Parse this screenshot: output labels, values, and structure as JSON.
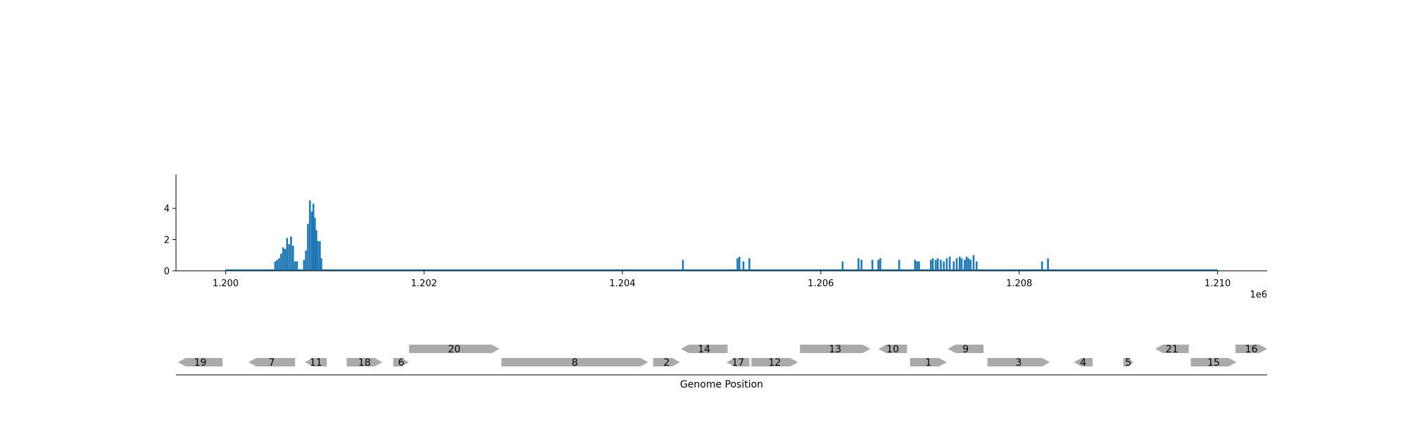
{
  "chart_data": [
    {
      "type": "bar",
      "panel": "coverage",
      "color": "#1f77b4",
      "x_ticks": [
        "1.200",
        "1.202",
        "1.204",
        "1.206",
        "1.208",
        "1.210"
      ],
      "x_tick_values": [
        1200000,
        1202000,
        1204000,
        1206000,
        1208000,
        1210000
      ],
      "x_offset_label": "1e6",
      "y_ticks": [
        "0",
        "2",
        "4"
      ],
      "y_tick_values": [
        0,
        2,
        4
      ],
      "xlim": [
        1199500,
        1210500
      ],
      "ylim": [
        0,
        5
      ],
      "baseline_range": [
        1200000,
        1210000
      ],
      "bars": [
        {
          "x": 1200500,
          "y": 0.6
        },
        {
          "x": 1200520,
          "y": 0.7
        },
        {
          "x": 1200540,
          "y": 0.8
        },
        {
          "x": 1200560,
          "y": 1.1
        },
        {
          "x": 1200580,
          "y": 1.5
        },
        {
          "x": 1200600,
          "y": 1.4
        },
        {
          "x": 1200620,
          "y": 2.1
        },
        {
          "x": 1200640,
          "y": 1.7
        },
        {
          "x": 1200660,
          "y": 2.2
        },
        {
          "x": 1200680,
          "y": 1.6
        },
        {
          "x": 1200700,
          "y": 0.6
        },
        {
          "x": 1200720,
          "y": 0.6
        },
        {
          "x": 1200790,
          "y": 0.7
        },
        {
          "x": 1200810,
          "y": 1.3
        },
        {
          "x": 1200830,
          "y": 3.0
        },
        {
          "x": 1200850,
          "y": 4.5
        },
        {
          "x": 1200870,
          "y": 3.8
        },
        {
          "x": 1200885,
          "y": 4.3
        },
        {
          "x": 1200900,
          "y": 3.4
        },
        {
          "x": 1200915,
          "y": 2.6
        },
        {
          "x": 1200930,
          "y": 1.9
        },
        {
          "x": 1200950,
          "y": 1.9
        },
        {
          "x": 1200965,
          "y": 0.8
        },
        {
          "x": 1204610,
          "y": 0.7
        },
        {
          "x": 1205160,
          "y": 0.8
        },
        {
          "x": 1205180,
          "y": 0.9
        },
        {
          "x": 1205220,
          "y": 0.6
        },
        {
          "x": 1205280,
          "y": 0.8
        },
        {
          "x": 1206220,
          "y": 0.6
        },
        {
          "x": 1206380,
          "y": 0.8
        },
        {
          "x": 1206410,
          "y": 0.7
        },
        {
          "x": 1206520,
          "y": 0.7
        },
        {
          "x": 1206580,
          "y": 0.7
        },
        {
          "x": 1206600,
          "y": 0.8
        },
        {
          "x": 1206790,
          "y": 0.7
        },
        {
          "x": 1206950,
          "y": 0.7
        },
        {
          "x": 1206970,
          "y": 0.6
        },
        {
          "x": 1206990,
          "y": 0.6
        },
        {
          "x": 1207110,
          "y": 0.7
        },
        {
          "x": 1207130,
          "y": 0.8
        },
        {
          "x": 1207160,
          "y": 0.7
        },
        {
          "x": 1207180,
          "y": 0.8
        },
        {
          "x": 1207210,
          "y": 0.7
        },
        {
          "x": 1207240,
          "y": 0.6
        },
        {
          "x": 1207270,
          "y": 0.8
        },
        {
          "x": 1207300,
          "y": 0.9
        },
        {
          "x": 1207340,
          "y": 0.6
        },
        {
          "x": 1207370,
          "y": 0.8
        },
        {
          "x": 1207400,
          "y": 0.9
        },
        {
          "x": 1207420,
          "y": 0.8
        },
        {
          "x": 1207450,
          "y": 0.7
        },
        {
          "x": 1207470,
          "y": 0.9
        },
        {
          "x": 1207490,
          "y": 0.8
        },
        {
          "x": 1207510,
          "y": 0.7
        },
        {
          "x": 1207540,
          "y": 1.0
        },
        {
          "x": 1207570,
          "y": 0.6
        },
        {
          "x": 1208230,
          "y": 0.6
        },
        {
          "x": 1208290,
          "y": 0.8
        }
      ]
    },
    {
      "type": "gene-track",
      "panel": "genes",
      "xlabel": "Genome Position",
      "color": "#aaaaaa",
      "genes": [
        {
          "label": "19",
          "start": 1199520,
          "end": 1199970,
          "strand": "-",
          "row": 0
        },
        {
          "label": "7",
          "start": 1200230,
          "end": 1200700,
          "strand": "-",
          "row": 0
        },
        {
          "label": "11",
          "start": 1200800,
          "end": 1201020,
          "strand": "-",
          "row": 0
        },
        {
          "label": "18",
          "start": 1201220,
          "end": 1201580,
          "strand": "+",
          "row": 0
        },
        {
          "label": "6",
          "start": 1201690,
          "end": 1201850,
          "strand": "+",
          "row": 0
        },
        {
          "label": "20",
          "start": 1201850,
          "end": 1202760,
          "strand": "+",
          "row": 1
        },
        {
          "label": "8",
          "start": 1202780,
          "end": 1204260,
          "strand": "+",
          "row": 0
        },
        {
          "label": "2",
          "start": 1204310,
          "end": 1204580,
          "strand": "+",
          "row": 0
        },
        {
          "label": "14",
          "start": 1204590,
          "end": 1205060,
          "strand": "-",
          "row": 1
        },
        {
          "label": "17",
          "start": 1205050,
          "end": 1205280,
          "strand": "-",
          "row": 0
        },
        {
          "label": "12",
          "start": 1205300,
          "end": 1205770,
          "strand": "+",
          "row": 0
        },
        {
          "label": "13",
          "start": 1205790,
          "end": 1206500,
          "strand": "+",
          "row": 1
        },
        {
          "label": "10",
          "start": 1206580,
          "end": 1206870,
          "strand": "-",
          "row": 1
        },
        {
          "label": "1",
          "start": 1206900,
          "end": 1207270,
          "strand": "+",
          "row": 0
        },
        {
          "label": "9",
          "start": 1207280,
          "end": 1207640,
          "strand": "-",
          "row": 1
        },
        {
          "label": "3",
          "start": 1207680,
          "end": 1208310,
          "strand": "+",
          "row": 0
        },
        {
          "label": "4",
          "start": 1208550,
          "end": 1208740,
          "strand": "-",
          "row": 0
        },
        {
          "label": "5",
          "start": 1209050,
          "end": 1209150,
          "strand": "+",
          "row": 0
        },
        {
          "label": "21",
          "start": 1209370,
          "end": 1209710,
          "strand": "-",
          "row": 1
        },
        {
          "label": "15",
          "start": 1209730,
          "end": 1210190,
          "strand": "+",
          "row": 0
        },
        {
          "label": "16",
          "start": 1210180,
          "end": 1210500,
          "strand": "+",
          "row": 1
        }
      ]
    }
  ]
}
